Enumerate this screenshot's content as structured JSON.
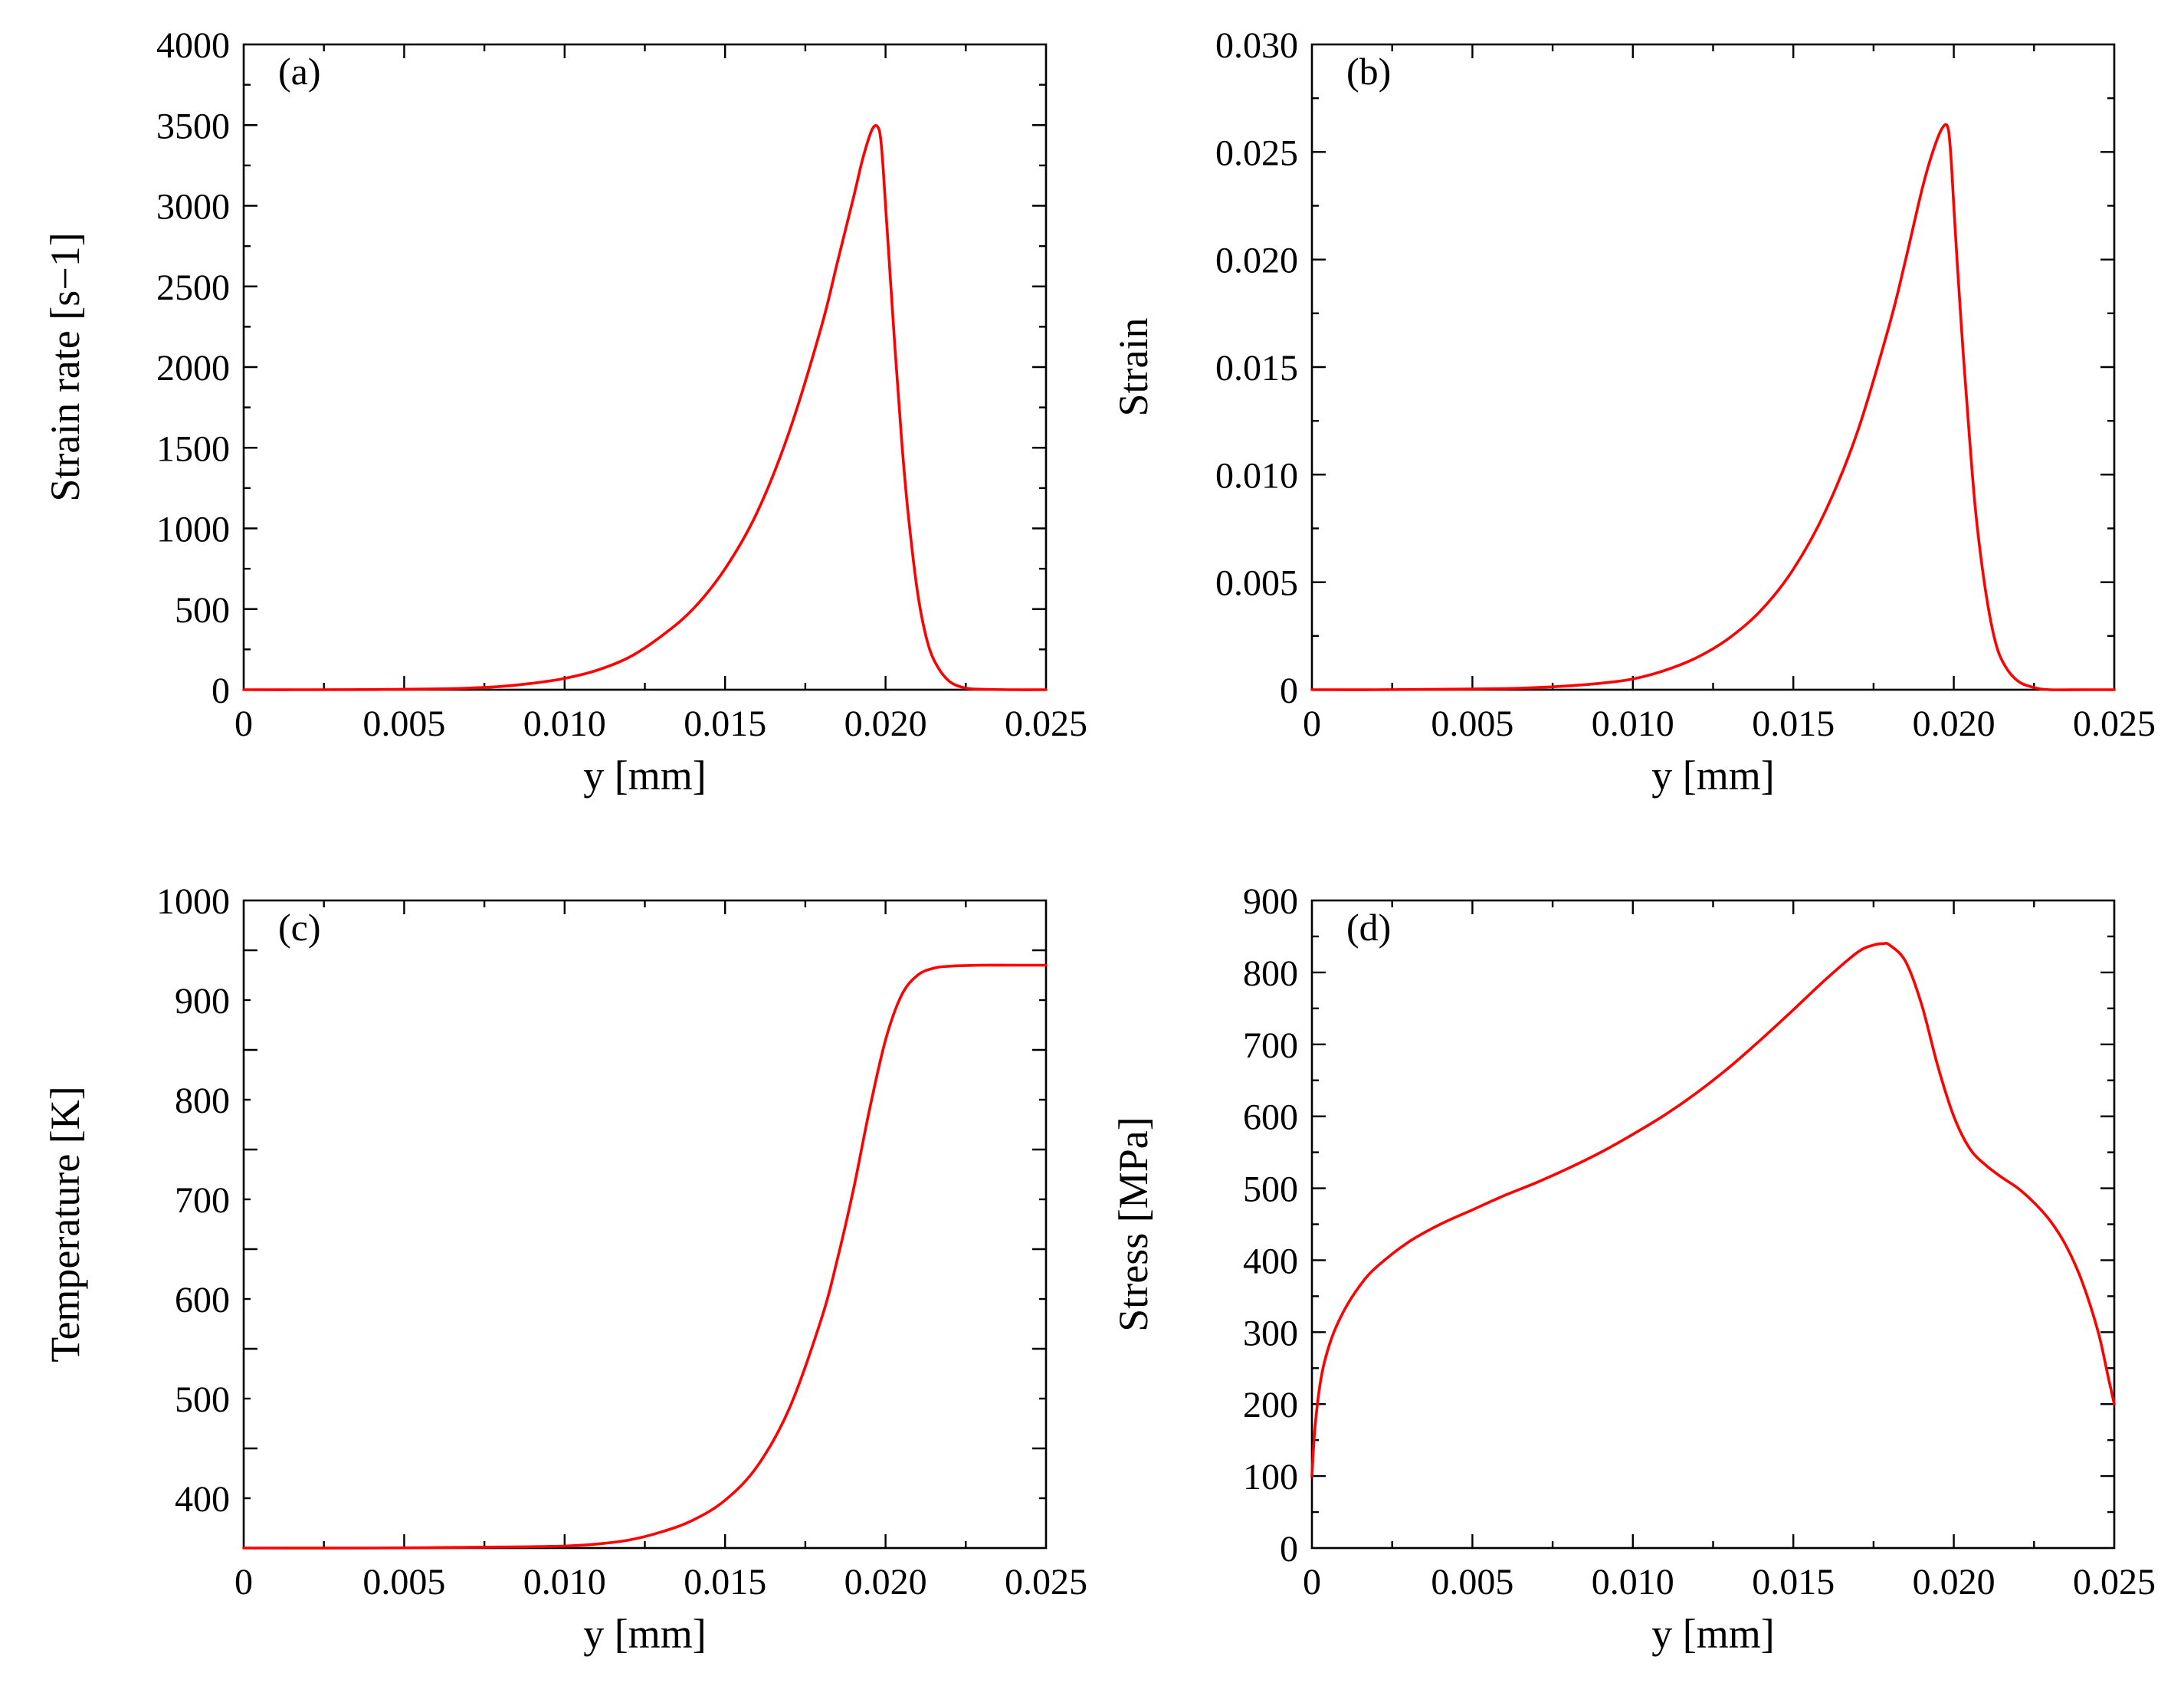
{
  "figure": {
    "line_color": "#ff0000"
  },
  "chart_data": [
    {
      "id": "a",
      "type": "line",
      "panel_label": "(a)",
      "xlabel": "y [mm]",
      "ylabel": "Strain rate [s−1]",
      "xlim": [
        0,
        0.025
      ],
      "ylim": [
        0,
        4000
      ],
      "xticks": [
        0,
        0.005,
        0.01,
        0.015,
        0.02,
        0.025
      ],
      "xtick_labels": [
        "0",
        "0.005",
        "0.010",
        "0.015",
        "0.020",
        "0.025"
      ],
      "yticks": [
        0,
        500,
        1000,
        1500,
        2000,
        2500,
        3000,
        3500,
        4000
      ],
      "ytick_labels": [
        "0",
        "500",
        "1000",
        "1500",
        "2000",
        "2500",
        "3000",
        "3500",
        "4000"
      ],
      "series": [
        {
          "name": "strain rate",
          "x": [
            0,
            0.002,
            0.004,
            0.006,
            0.007,
            0.008,
            0.009,
            0.01,
            0.011,
            0.012,
            0.013,
            0.014,
            0.015,
            0.016,
            0.017,
            0.018,
            0.0185,
            0.019,
            0.0193,
            0.0196,
            0.0198,
            0.0199,
            0.02,
            0.0201,
            0.0203,
            0.0205,
            0.0207,
            0.021,
            0.0213,
            0.0216,
            0.022,
            0.0225,
            0.023,
            0.024,
            0.025
          ],
          "y": [
            0,
            0,
            1,
            5,
            10,
            20,
            40,
            70,
            120,
            200,
            330,
            500,
            750,
            1100,
            1600,
            2250,
            2650,
            3050,
            3300,
            3480,
            3470,
            3300,
            3000,
            2700,
            2100,
            1550,
            1100,
            600,
            300,
            150,
            50,
            10,
            3,
            0,
            0
          ]
        }
      ]
    },
    {
      "id": "b",
      "type": "line",
      "panel_label": "(b)",
      "xlabel": "y [mm]",
      "ylabel": "Strain",
      "xlim": [
        0,
        0.025
      ],
      "ylim": [
        0,
        0.03
      ],
      "xticks": [
        0,
        0.005,
        0.01,
        0.015,
        0.02,
        0.025
      ],
      "xtick_labels": [
        "0",
        "0.005",
        "0.010",
        "0.015",
        "0.020",
        "0.025"
      ],
      "yticks": [
        0,
        0.005,
        0.01,
        0.015,
        0.02,
        0.025,
        0.03
      ],
      "ytick_labels": [
        "0",
        "0.005",
        "0.010",
        "0.015",
        "0.020",
        "0.025",
        "0.030"
      ],
      "series": [
        {
          "name": "strain",
          "x": [
            0,
            0.002,
            0.004,
            0.006,
            0.007,
            0.008,
            0.009,
            0.01,
            0.011,
            0.012,
            0.013,
            0.014,
            0.015,
            0.016,
            0.017,
            0.018,
            0.0185,
            0.019,
            0.0193,
            0.0196,
            0.0198,
            0.0199,
            0.02,
            0.0201,
            0.0203,
            0.0205,
            0.0207,
            0.021,
            0.0213,
            0.0216,
            0.022,
            0.0225,
            0.023,
            0.024,
            0.025
          ],
          "y": [
            0,
            0,
            2e-05,
            5e-05,
            0.0001,
            0.00018,
            0.0003,
            0.0005,
            0.0009,
            0.0015,
            0.0024,
            0.0037,
            0.0056,
            0.0083,
            0.012,
            0.017,
            0.02,
            0.0232,
            0.0248,
            0.026,
            0.0262,
            0.025,
            0.0225,
            0.02,
            0.0155,
            0.0115,
            0.008,
            0.0045,
            0.0022,
            0.0011,
            0.0004,
            0.0001,
            0,
            0,
            0
          ]
        }
      ]
    },
    {
      "id": "c",
      "type": "line",
      "panel_label": "(c)",
      "xlabel": "y [mm]",
      "ylabel": "Temperature [K]",
      "xlim": [
        0,
        0.025
      ],
      "ylim": [
        350,
        1000
      ],
      "xticks": [
        0,
        0.005,
        0.01,
        0.015,
        0.02,
        0.025
      ],
      "xtick_labels": [
        "0",
        "0.005",
        "0.010",
        "0.015",
        "0.020",
        "0.025"
      ],
      "yticks": [
        400,
        500,
        600,
        700,
        800,
        900,
        1000
      ],
      "ytick_labels": [
        "400",
        "500",
        "600",
        "700",
        "800",
        "900",
        "1000"
      ],
      "series": [
        {
          "name": "temperature",
          "x": [
            0,
            0.004,
            0.008,
            0.01,
            0.011,
            0.012,
            0.013,
            0.014,
            0.015,
            0.016,
            0.017,
            0.018,
            0.0185,
            0.019,
            0.0195,
            0.02,
            0.0205,
            0.021,
            0.0215,
            0.022,
            0.023,
            0.024,
            0.025
          ],
          "y": [
            350,
            350,
            351,
            352,
            354,
            358,
            366,
            378,
            398,
            432,
            490,
            580,
            640,
            710,
            790,
            860,
            905,
            925,
            932,
            934,
            935,
            935,
            935
          ]
        }
      ]
    },
    {
      "id": "d",
      "type": "line",
      "panel_label": "(d)",
      "xlabel": "y [mm]",
      "ylabel": "Stress [MPa]",
      "xlim": [
        0,
        0.025
      ],
      "ylim": [
        0,
        900
      ],
      "xticks": [
        0,
        0.005,
        0.01,
        0.015,
        0.02,
        0.025
      ],
      "xtick_labels": [
        "0",
        "0.005",
        "0.010",
        "0.015",
        "0.020",
        "0.025"
      ],
      "yticks": [
        0,
        100,
        200,
        300,
        400,
        500,
        600,
        700,
        800,
        900
      ],
      "ytick_labels": [
        "0",
        "100",
        "200",
        "300",
        "400",
        "500",
        "600",
        "700",
        "800",
        "900"
      ],
      "series": [
        {
          "name": "stress",
          "x": [
            0,
            0.0001,
            0.0003,
            0.0006,
            0.001,
            0.0015,
            0.002,
            0.003,
            0.004,
            0.005,
            0.006,
            0.007,
            0.008,
            0.009,
            0.01,
            0.011,
            0.012,
            0.013,
            0.014,
            0.015,
            0.016,
            0.017,
            0.0175,
            0.0178,
            0.018,
            0.0185,
            0.019,
            0.0195,
            0.02,
            0.0205,
            0.021,
            0.0215,
            0.022,
            0.0225,
            0.023,
            0.0235,
            0.024,
            0.0245,
            0.0248,
            0.025
          ],
          "y": [
            100,
            170,
            240,
            290,
            330,
            365,
            390,
            425,
            450,
            470,
            490,
            508,
            528,
            550,
            575,
            602,
            633,
            668,
            707,
            748,
            790,
            828,
            838,
            840,
            838,
            815,
            755,
            670,
            600,
            555,
            532,
            515,
            500,
            480,
            455,
            420,
            370,
            300,
            240,
            200
          ]
        }
      ]
    }
  ]
}
